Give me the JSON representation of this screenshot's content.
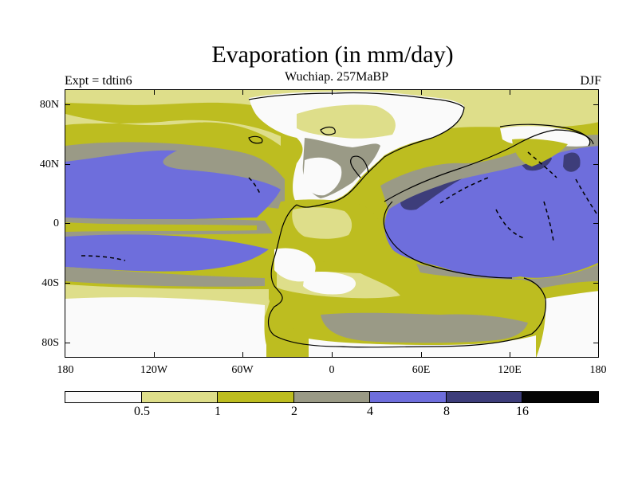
{
  "header": {
    "title": "Evaporation (in mm/day)",
    "subtitle": "Wuchiap. 257MaBP",
    "left_label": "Expt = tdtin6",
    "right_label": "DJF"
  },
  "axes": {
    "lat_labels": [
      "80N",
      "40N",
      "0",
      "40S",
      "80S"
    ],
    "lon_labels": [
      "180",
      "120W",
      "60W",
      "0",
      "60E",
      "120E",
      "180"
    ]
  },
  "colorbar": {
    "colors": [
      "#fafafa",
      "#dede8a",
      "#bdbd20",
      "#9a9a86",
      "#6e6edc",
      "#3d3d7a",
      "#050505"
    ],
    "labels": [
      "0.5",
      "1",
      "2",
      "4",
      "8",
      "16"
    ],
    "units": "mm/day"
  }
}
